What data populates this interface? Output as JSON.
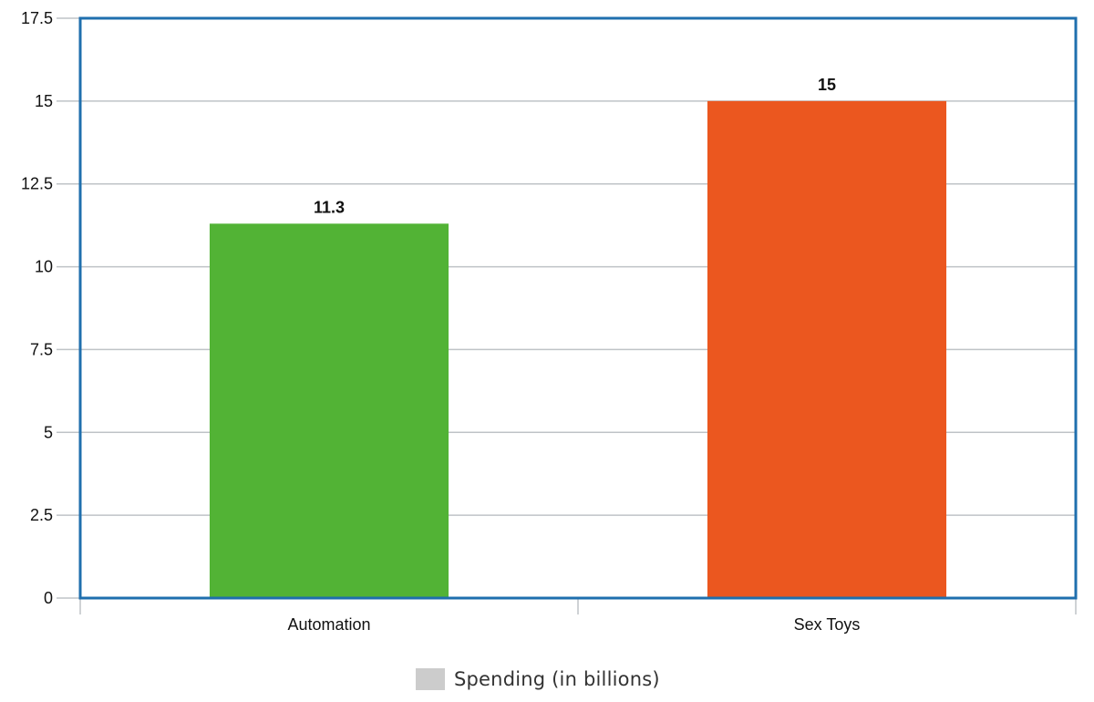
{
  "chart_data": {
    "type": "bar",
    "categories": [
      "Automation",
      "Sex Toys"
    ],
    "series": [
      {
        "name": "Spending (in billions)",
        "values": [
          11.3,
          15
        ],
        "colors": [
          "#52b335",
          "#eb571f"
        ]
      }
    ],
    "data_labels": [
      "11.3",
      "15"
    ],
    "yticks": [
      "0",
      "2.5",
      "5",
      "7.5",
      "10",
      "12.5",
      "15",
      "17.5"
    ],
    "ylim": [
      0,
      17.5
    ],
    "grid": true,
    "legend_position": "bottom-center",
    "frame_color": "#1f6fae",
    "grid_color": "#bfc3c7"
  }
}
